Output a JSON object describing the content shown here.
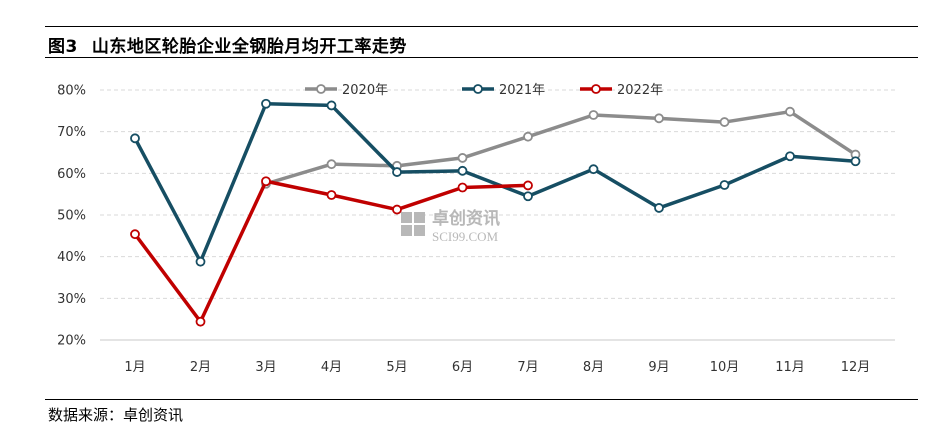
{
  "figure": {
    "title_num": "图3",
    "title_text": "山东地区轮胎企业全钢胎月均开工率走势",
    "source": "数据来源：卓创资讯"
  },
  "watermark": {
    "brand": "卓创资讯",
    "site": "SCI99.COM"
  },
  "chart_data": {
    "type": "line",
    "title": "山东地区轮胎企业全钢胎月均开工率走势",
    "xlabel": "",
    "ylabel": "",
    "categories": [
      "1月",
      "2月",
      "3月",
      "4月",
      "5月",
      "6月",
      "7月",
      "8月",
      "9月",
      "10月",
      "11月",
      "12月"
    ],
    "y_ticks": [
      "20%",
      "30%",
      "40%",
      "50%",
      "60%",
      "70%",
      "80%"
    ],
    "ylim": [
      20,
      80
    ],
    "grid": "horizontal dashed",
    "legend_position": "top-center",
    "series": [
      {
        "name": "2020年",
        "color": "#8c8c8c",
        "values": [
          null,
          null,
          57.5,
          62.2,
          61.8,
          63.7,
          68.8,
          74.0,
          73.2,
          72.3,
          74.8,
          64.5
        ]
      },
      {
        "name": "2021年",
        "color": "#164e63",
        "values": [
          68.4,
          38.8,
          76.7,
          76.3,
          60.3,
          60.6,
          54.5,
          61.0,
          51.7,
          57.2,
          64.1,
          62.9
        ]
      },
      {
        "name": "2022年",
        "color": "#c00000",
        "values": [
          45.4,
          24.4,
          58.1,
          54.8,
          51.3,
          56.6,
          57.1,
          null,
          null,
          null,
          null,
          null
        ]
      }
    ]
  }
}
